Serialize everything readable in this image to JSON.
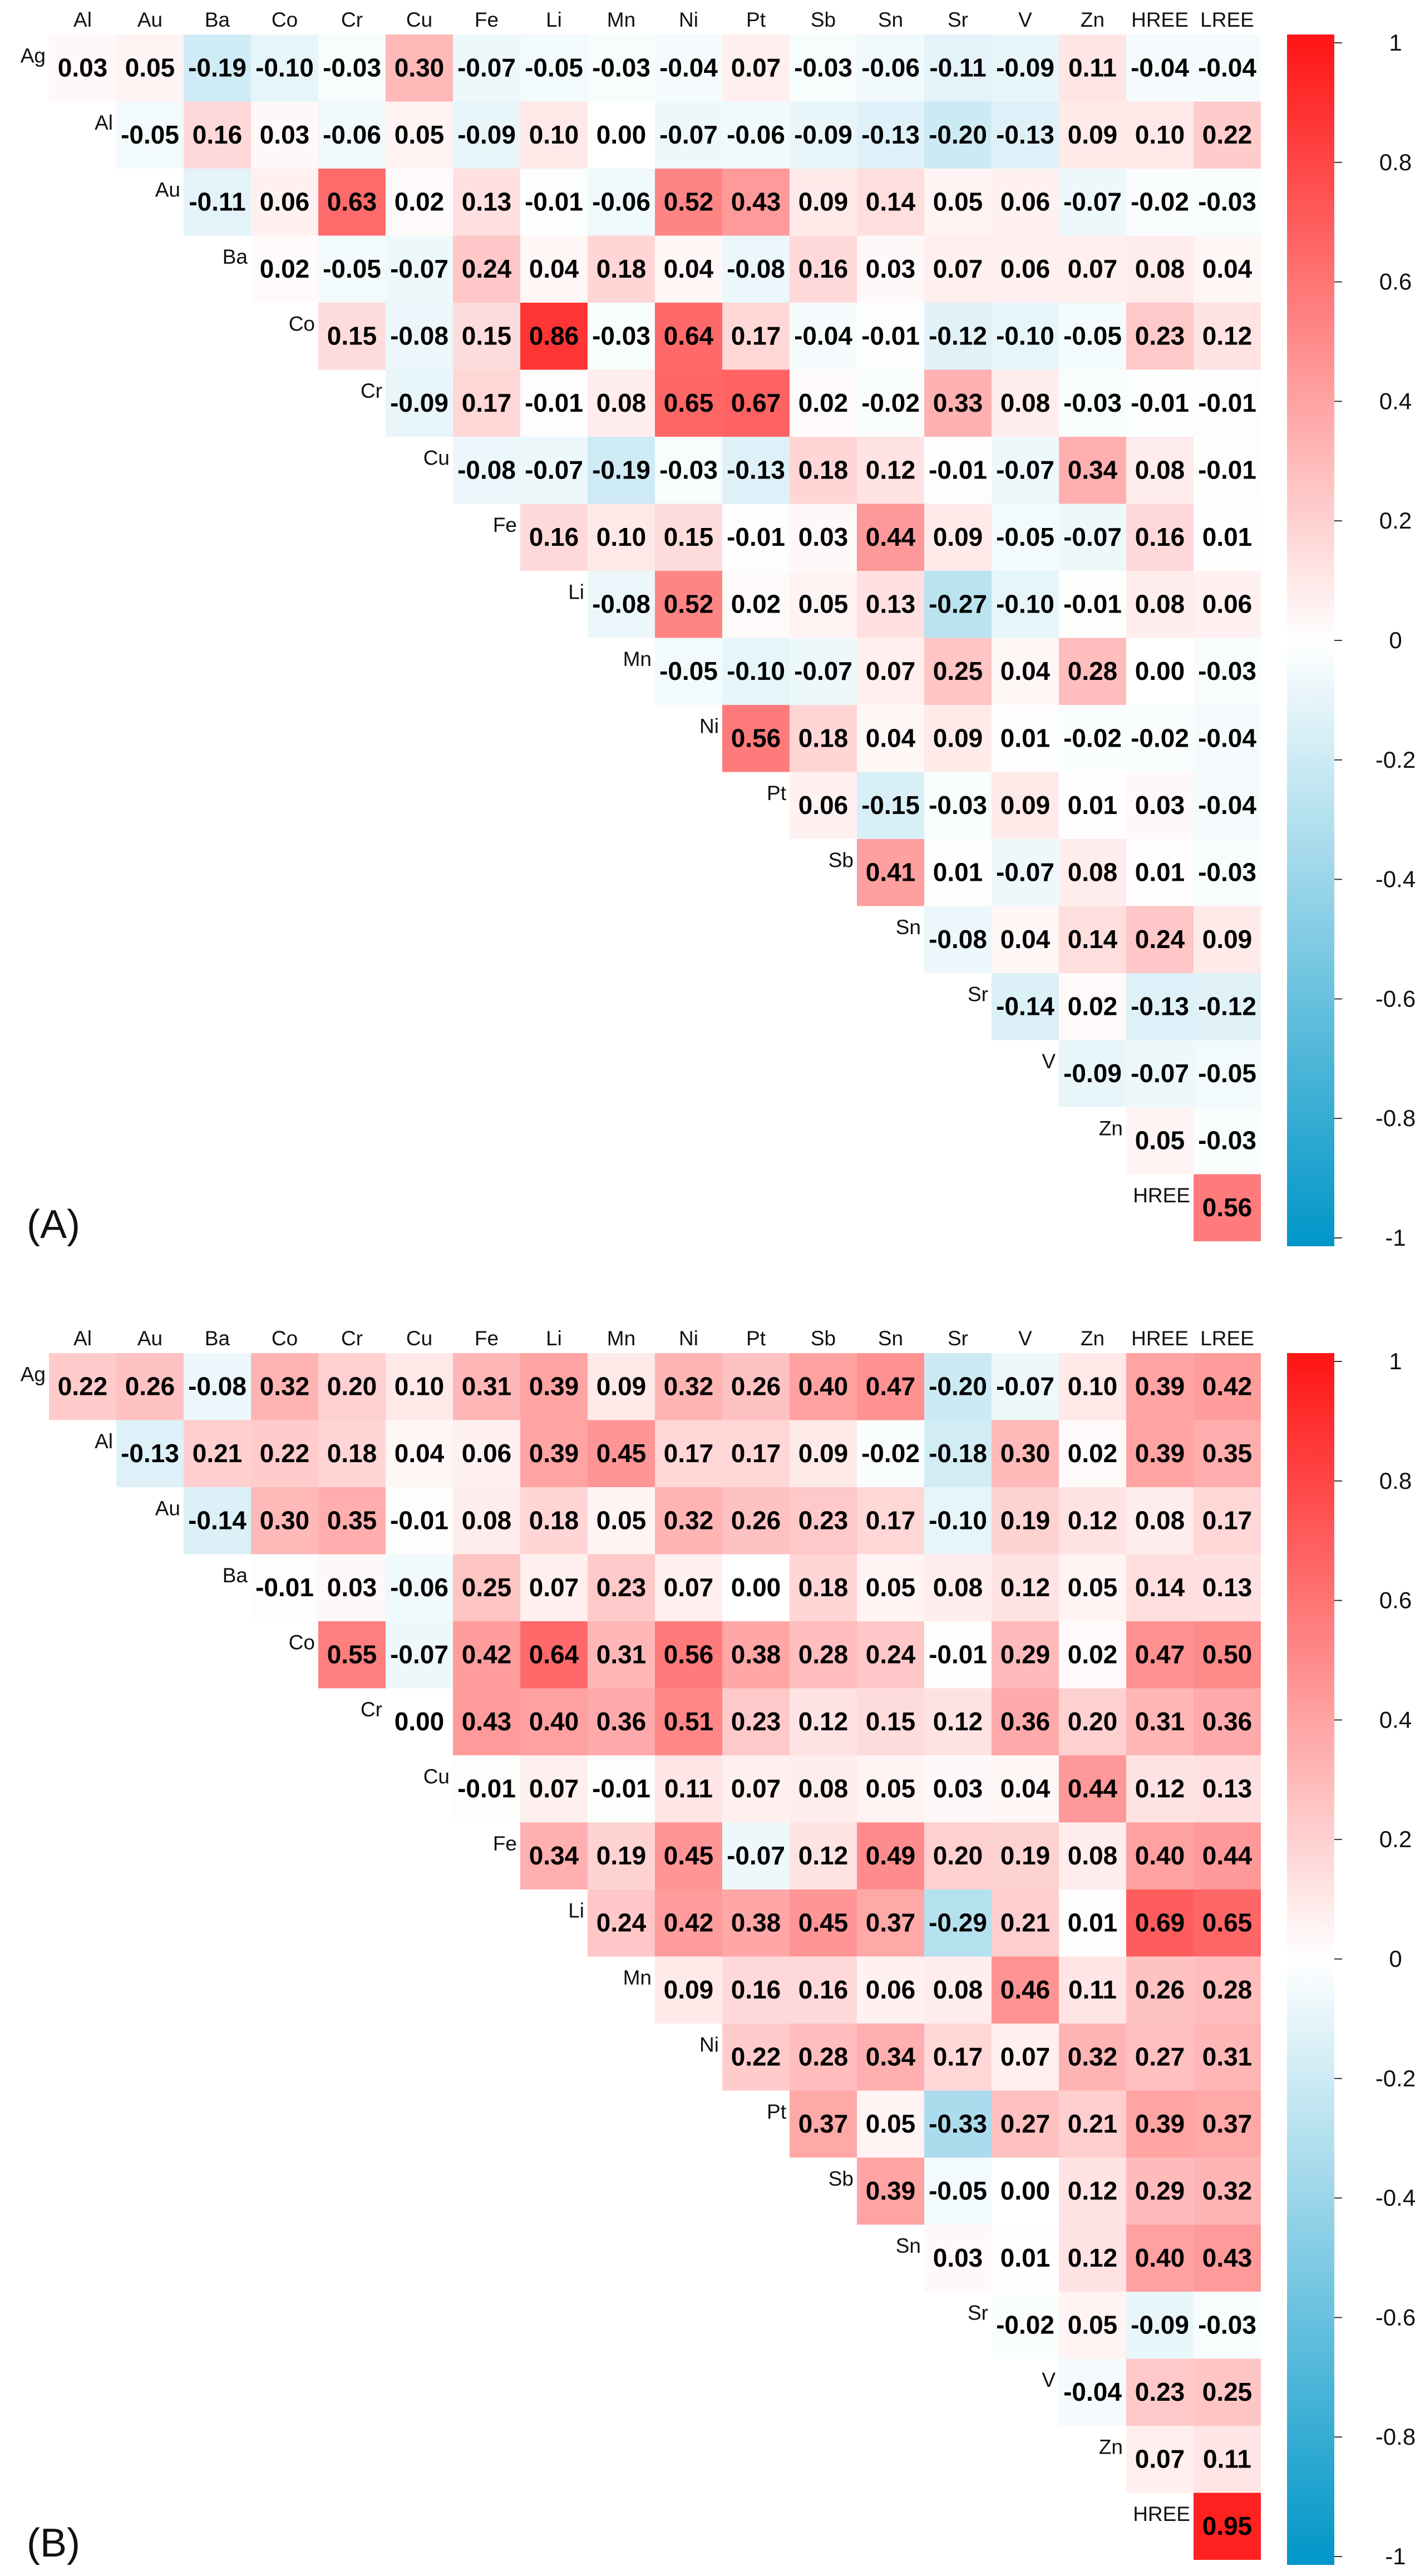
{
  "chart_data": [
    {
      "type": "heatmap",
      "panel_label": "(A)",
      "shape": "upper-triangle correlation matrix",
      "column_labels": [
        "Al",
        "Au",
        "Ba",
        "Co",
        "Cr",
        "Cu",
        "Fe",
        "Li",
        "Mn",
        "Ni",
        "Pt",
        "Sb",
        "Sn",
        "Sr",
        "V",
        "Zn",
        "HREE",
        "LREE"
      ],
      "row_labels": [
        "Ag",
        "Al",
        "Au",
        "Ba",
        "Co",
        "Cr",
        "Cu",
        "Fe",
        "Li",
        "Mn",
        "Ni",
        "Pt",
        "Sb",
        "Sn",
        "Sr",
        "V",
        "Zn",
        "HREE"
      ],
      "rows": [
        [
          "0.03",
          "0.05",
          "-0.19",
          "-0.10",
          "-0.03",
          "0.30",
          "-0.07",
          "-0.05",
          "-0.03",
          "-0.04",
          "0.07",
          "-0.03",
          "-0.06",
          "-0.11",
          "-0.09",
          "0.11",
          "-0.04",
          "-0.04"
        ],
        [
          "-0.05",
          "0.16",
          "0.03",
          "-0.06",
          "0.05",
          "-0.09",
          "0.10",
          "0.00",
          "-0.07",
          "-0.06",
          "-0.09",
          "-0.13",
          "-0.20",
          "-0.13",
          "0.09",
          "0.10",
          "0.22"
        ],
        [
          "-0.11",
          "0.06",
          "0.63",
          "0.02",
          "0.13",
          "-0.01",
          "-0.06",
          "0.52",
          "0.43",
          "0.09",
          "0.14",
          "0.05",
          "0.06",
          "-0.07",
          "-0.02",
          "-0.03"
        ],
        [
          "0.02",
          "-0.05",
          "-0.07",
          "0.24",
          "0.04",
          "0.18",
          "0.04",
          "-0.08",
          "0.16",
          "0.03",
          "0.07",
          "0.06",
          "0.07",
          "0.08",
          "0.04"
        ],
        [
          "0.15",
          "-0.08",
          "0.15",
          "0.86",
          "-0.03",
          "0.64",
          "0.17",
          "-0.04",
          "-0.01",
          "-0.12",
          "-0.10",
          "-0.05",
          "0.23",
          "0.12"
        ],
        [
          "-0.09",
          "0.17",
          "-0.01",
          "0.08",
          "0.65",
          "0.67",
          "0.02",
          "-0.02",
          "0.33",
          "0.08",
          "-0.03",
          "-0.01",
          "-0.01"
        ],
        [
          "-0.08",
          "-0.07",
          "-0.19",
          "-0.03",
          "-0.13",
          "0.18",
          "0.12",
          "-0.01",
          "-0.07",
          "0.34",
          "0.08",
          "-0.01"
        ],
        [
          "0.16",
          "0.10",
          "0.15",
          "-0.01",
          "0.03",
          "0.44",
          "0.09",
          "-0.05",
          "-0.07",
          "0.16",
          "0.01"
        ],
        [
          "-0.08",
          "0.52",
          "0.02",
          "0.05",
          "0.13",
          "-0.27",
          "-0.10",
          "-0.01",
          "0.08",
          "0.06"
        ],
        [
          "-0.05",
          "-0.10",
          "-0.07",
          "0.07",
          "0.25",
          "0.04",
          "0.28",
          "0.00",
          "-0.03"
        ],
        [
          "0.56",
          "0.18",
          "0.04",
          "0.09",
          "0.01",
          "-0.02",
          "-0.02",
          "-0.04"
        ],
        [
          "0.06",
          "-0.15",
          "-0.03",
          "0.09",
          "0.01",
          "0.03",
          "-0.04"
        ],
        [
          "0.41",
          "0.01",
          "-0.07",
          "0.08",
          "0.01",
          "-0.03"
        ],
        [
          "-0.08",
          "0.04",
          "0.14",
          "0.24",
          "0.09"
        ],
        [
          "-0.14",
          "0.02",
          "-0.13",
          "-0.12"
        ],
        [
          "-0.09",
          "-0.07",
          "-0.05"
        ],
        [
          "0.05",
          "-0.03"
        ],
        [
          "0.56"
        ]
      ],
      "colorbar": {
        "range": [
          -1,
          1
        ],
        "ticks": [
          "1",
          "0.8",
          "0.6",
          "0.4",
          "0.2",
          "0",
          "-0.2",
          "-0.4",
          "-0.6",
          "-0.8",
          "-1"
        ]
      }
    },
    {
      "type": "heatmap",
      "panel_label": "(B)",
      "shape": "upper-triangle correlation matrix",
      "column_labels": [
        "Al",
        "Au",
        "Ba",
        "Co",
        "Cr",
        "Cu",
        "Fe",
        "Li",
        "Mn",
        "Ni",
        "Pt",
        "Sb",
        "Sn",
        "Sr",
        "V",
        "Zn",
        "HREE",
        "LREE"
      ],
      "row_labels": [
        "Ag",
        "Al",
        "Au",
        "Ba",
        "Co",
        "Cr",
        "Cu",
        "Fe",
        "Li",
        "Mn",
        "Ni",
        "Pt",
        "Sb",
        "Sn",
        "Sr",
        "V",
        "Zn",
        "HREE"
      ],
      "rows": [
        [
          "0.22",
          "0.26",
          "-0.08",
          "0.32",
          "0.20",
          "0.10",
          "0.31",
          "0.39",
          "0.09",
          "0.32",
          "0.26",
          "0.40",
          "0.47",
          "-0.20",
          "-0.07",
          "0.10",
          "0.39",
          "0.42"
        ],
        [
          "-0.13",
          "0.21",
          "0.22",
          "0.18",
          "0.04",
          "0.06",
          "0.39",
          "0.45",
          "0.17",
          "0.17",
          "0.09",
          "-0.02",
          "-0.18",
          "0.30",
          "0.02",
          "0.39",
          "0.35"
        ],
        [
          "-0.14",
          "0.30",
          "0.35",
          "-0.01",
          "0.08",
          "0.18",
          "0.05",
          "0.32",
          "0.26",
          "0.23",
          "0.17",
          "-0.10",
          "0.19",
          "0.12",
          "0.08",
          "0.17"
        ],
        [
          "-0.01",
          "0.03",
          "-0.06",
          "0.25",
          "0.07",
          "0.23",
          "0.07",
          "0.00",
          "0.18",
          "0.05",
          "0.08",
          "0.12",
          "0.05",
          "0.14",
          "0.13"
        ],
        [
          "0.55",
          "-0.07",
          "0.42",
          "0.64",
          "0.31",
          "0.56",
          "0.38",
          "0.28",
          "0.24",
          "-0.01",
          "0.29",
          "0.02",
          "0.47",
          "0.50"
        ],
        [
          "0.00",
          "0.43",
          "0.40",
          "0.36",
          "0.51",
          "0.23",
          "0.12",
          "0.15",
          "0.12",
          "0.36",
          "0.20",
          "0.31",
          "0.36"
        ],
        [
          "-0.01",
          "0.07",
          "-0.01",
          "0.11",
          "0.07",
          "0.08",
          "0.05",
          "0.03",
          "0.04",
          "0.44",
          "0.12",
          "0.13"
        ],
        [
          "0.34",
          "0.19",
          "0.45",
          "-0.07",
          "0.12",
          "0.49",
          "0.20",
          "0.19",
          "0.08",
          "0.40",
          "0.44"
        ],
        [
          "0.24",
          "0.42",
          "0.38",
          "0.45",
          "0.37",
          "-0.29",
          "0.21",
          "0.01",
          "0.69",
          "0.65"
        ],
        [
          "0.09",
          "0.16",
          "0.16",
          "0.06",
          "0.08",
          "0.46",
          "0.11",
          "0.26",
          "0.28"
        ],
        [
          "0.22",
          "0.28",
          "0.34",
          "0.17",
          "0.07",
          "0.32",
          "0.27",
          "0.31"
        ],
        [
          "0.37",
          "0.05",
          "-0.33",
          "0.27",
          "0.21",
          "0.39",
          "0.37"
        ],
        [
          "0.39",
          "-0.05",
          "0.00",
          "0.12",
          "0.29",
          "0.32"
        ],
        [
          "0.03",
          "0.01",
          "0.12",
          "0.40",
          "0.43"
        ],
        [
          "-0.02",
          "0.05",
          "-0.09",
          "-0.03"
        ],
        [
          "-0.04",
          "0.23",
          "0.25"
        ],
        [
          "0.07",
          "0.11"
        ],
        [
          "0.95"
        ]
      ],
      "colorbar": {
        "range": [
          -1,
          1
        ],
        "ticks": [
          "1",
          "0.8",
          "0.6",
          "0.4",
          "0.2",
          "0",
          "-0.2",
          "-0.4",
          "-0.6",
          "-0.8",
          "-1"
        ]
      }
    }
  ]
}
